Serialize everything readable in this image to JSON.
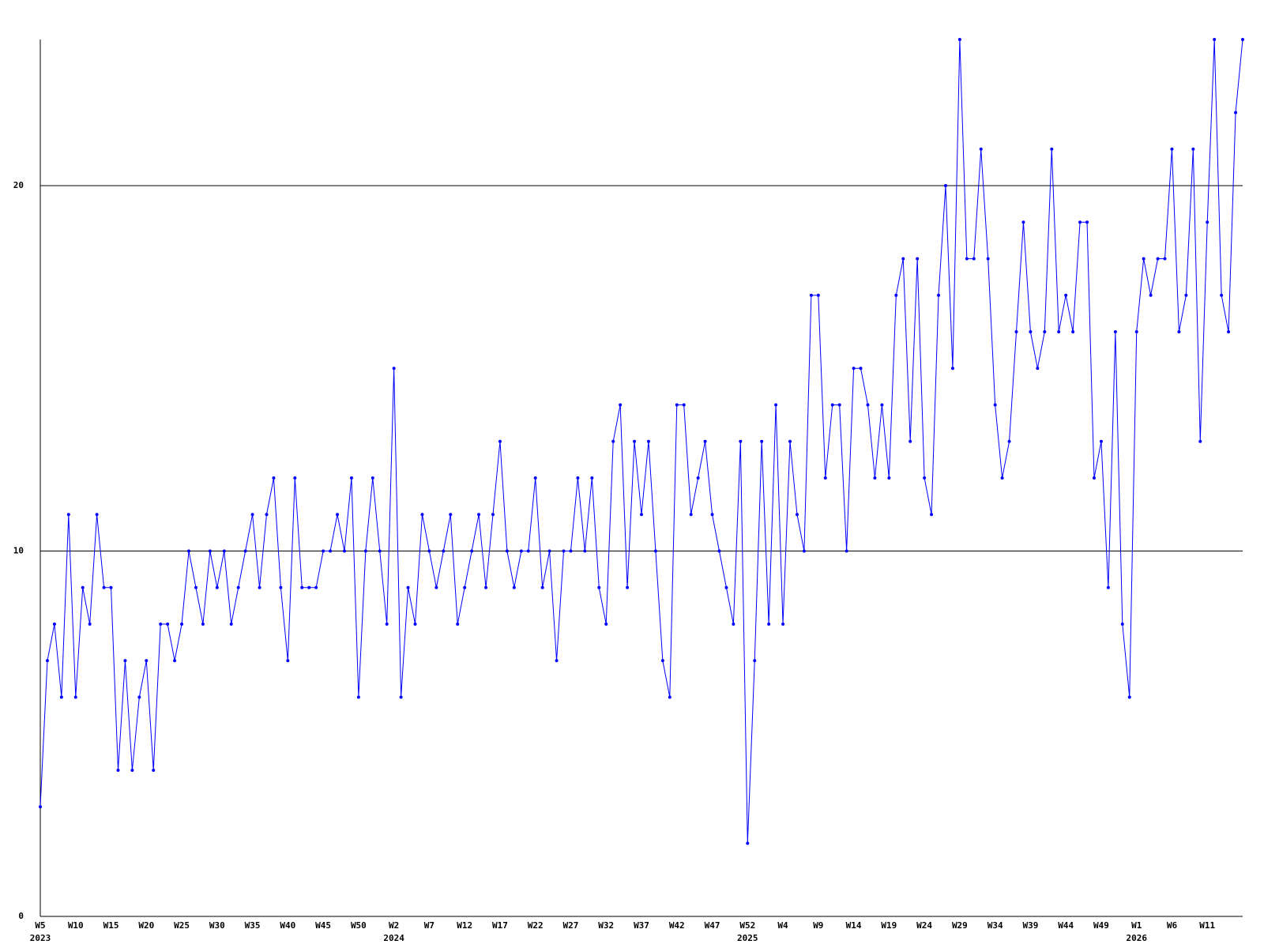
{
  "chart_data": {
    "type": "line",
    "categories": [
      "W5",
      null,
      null,
      null,
      null,
      "W10",
      null,
      null,
      null,
      null,
      "W15",
      null,
      null,
      null,
      null,
      "W20",
      null,
      null,
      null,
      null,
      "W25",
      null,
      null,
      null,
      null,
      "W30",
      null,
      null,
      null,
      null,
      "W35",
      null,
      null,
      null,
      null,
      "W40",
      null,
      null,
      null,
      null,
      "W45",
      null,
      null,
      null,
      null,
      "W50",
      null,
      null,
      null,
      null,
      "W2",
      null,
      null,
      null,
      null,
      "W7",
      null,
      null,
      null,
      null,
      "W12",
      null,
      null,
      null,
      null,
      "W17",
      null,
      null,
      null,
      null,
      "W22",
      null,
      null,
      null,
      null,
      "W27",
      null,
      null,
      null,
      null,
      "W32",
      null,
      null,
      null,
      null,
      "W37",
      null,
      null,
      null,
      null,
      "W42",
      null,
      null,
      null,
      null,
      "W47",
      null,
      null,
      null,
      null,
      "W52",
      null,
      null,
      null,
      null,
      "W4",
      null,
      null,
      null,
      null,
      "W9",
      null,
      null,
      null,
      null,
      "W14",
      null,
      null,
      null,
      null,
      "W19",
      null,
      null,
      null,
      null,
      "W24",
      null,
      null,
      null,
      null,
      "W29",
      null,
      null,
      null,
      null,
      "W34",
      null,
      null,
      null,
      null,
      "W39",
      null,
      null,
      null,
      null,
      "W44",
      null,
      null,
      null,
      null,
      "W49",
      null,
      null,
      null,
      null,
      "W1",
      null,
      null,
      null,
      null,
      "W6",
      null,
      null,
      null,
      null,
      "W11",
      null,
      null,
      null,
      null,
      null
    ],
    "years": [
      "2023",
      null,
      null,
      null,
      null,
      null,
      null,
      null,
      null,
      null,
      null,
      null,
      null,
      null,
      null,
      null,
      null,
      null,
      null,
      null,
      null,
      null,
      null,
      null,
      null,
      null,
      null,
      null,
      null,
      null,
      null,
      null,
      null,
      null,
      null,
      null,
      null,
      null,
      null,
      null,
      null,
      null,
      null,
      null,
      null,
      null,
      null,
      null,
      null,
      null,
      "2024",
      null,
      null,
      null,
      null,
      null,
      null,
      null,
      null,
      null,
      null,
      null,
      null,
      null,
      null,
      null,
      null,
      null,
      null,
      null,
      null,
      null,
      null,
      null,
      null,
      null,
      null,
      null,
      null,
      null,
      null,
      null,
      null,
      null,
      null,
      null,
      null,
      null,
      null,
      null,
      null,
      null,
      null,
      null,
      null,
      null,
      null,
      null,
      null,
      null,
      "2025",
      null,
      null,
      null,
      null,
      null,
      null,
      null,
      null,
      null,
      null,
      null,
      null,
      null,
      null,
      null,
      null,
      null,
      null,
      null,
      null,
      null,
      null,
      null,
      null,
      null,
      null,
      null,
      null,
      null,
      null,
      null,
      null,
      null,
      null,
      null,
      null,
      null,
      null,
      null,
      null,
      null,
      null,
      null,
      null,
      null,
      null,
      null,
      null,
      null,
      null,
      null,
      null,
      null,
      null,
      "2026",
      null,
      null,
      null,
      null,
      null,
      null,
      null,
      null,
      null,
      null,
      null,
      null,
      null,
      null,
      null
    ],
    "values": [
      3,
      7,
      8,
      6,
      11,
      6,
      9,
      8,
      11,
      9,
      9,
      4,
      7,
      4,
      6,
      7,
      4,
      8,
      8,
      7,
      8,
      10,
      9,
      8,
      10,
      9,
      10,
      8,
      9,
      10,
      11,
      9,
      11,
      12,
      9,
      7,
      12,
      9,
      9,
      9,
      10,
      10,
      11,
      10,
      12,
      6,
      10,
      12,
      10,
      8,
      15,
      6,
      9,
      8,
      11,
      10,
      9,
      10,
      11,
      8,
      9,
      10,
      11,
      9,
      11,
      13,
      10,
      9,
      10,
      10,
      12,
      9,
      10,
      7,
      10,
      10,
      12,
      10,
      12,
      9,
      8,
      13,
      14,
      9,
      13,
      11,
      13,
      10,
      7,
      6,
      14,
      14,
      11,
      12,
      13,
      11,
      10,
      9,
      8,
      13,
      2,
      7,
      13,
      8,
      14,
      8,
      13,
      11,
      10,
      17,
      17,
      12,
      14,
      14,
      10,
      15,
      15,
      14,
      12,
      14,
      12,
      17,
      18,
      13,
      18,
      12,
      11,
      17,
      20,
      15,
      24,
      18,
      18,
      21,
      18,
      14,
      12,
      13,
      16,
      19,
      16,
      15,
      16,
      21,
      16,
      17,
      16,
      19,
      19,
      12,
      13,
      9,
      16,
      8,
      6,
      16,
      18,
      17,
      18,
      18,
      21,
      16,
      17,
      21,
      13,
      19,
      24,
      17,
      16,
      22,
      24
    ],
    "color": "#0000ff",
    "ylim": [
      0,
      24
    ],
    "yticks": [
      0,
      10,
      20
    ],
    "grid": true
  }
}
